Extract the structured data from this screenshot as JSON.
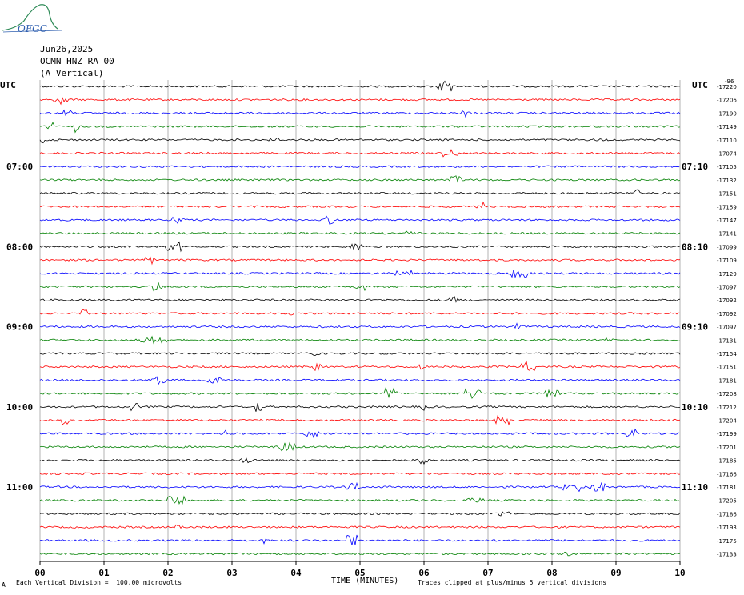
{
  "logo_text": "OFGC",
  "header": {
    "date": "Jun26,2025",
    "station": "OCMN HNZ RA 00",
    "component": "(A Vertical)"
  },
  "left_label": "UTC",
  "right_label": "UTC",
  "footer": {
    "scale": "Each Vertical Division =  100.00 microvolts",
    "xlabel": "TIME (MINUTES)",
    "clip_note": "Traces clipped at plus/minus 5 vertical divisions",
    "marker": "A"
  },
  "colors": {
    "cycle": [
      "#000000",
      "#ff0000",
      "#0000ff",
      "#008000"
    ]
  },
  "chart_data": {
    "type": "line",
    "title": "",
    "xlabel": "TIME (MINUTES)",
    "ylabel": "",
    "xlim": [
      0,
      10
    ],
    "x_ticks": [
      "00",
      "01",
      "02",
      "03",
      "04",
      "05",
      "06",
      "07",
      "08",
      "09",
      "10"
    ],
    "grid": true,
    "left_time_labels": [
      {
        "row": 6,
        "label": "07:00"
      },
      {
        "row": 12,
        "label": "08:00"
      },
      {
        "row": 18,
        "label": "09:00"
      },
      {
        "row": 24,
        "label": "10:00"
      },
      {
        "row": 30,
        "label": "11:00"
      }
    ],
    "right_time_labels": [
      {
        "row": 6,
        "label": "07:10"
      },
      {
        "row": 12,
        "label": "08:10"
      },
      {
        "row": 18,
        "label": "09:10"
      },
      {
        "row": 24,
        "label": "10:10"
      },
      {
        "row": 30,
        "label": "11:10"
      }
    ],
    "trace_offsets": [
      -17220,
      -17206,
      -17190,
      -17149,
      -17110,
      -17074,
      -17105,
      -17132,
      -17151,
      -17159,
      -17147,
      -17141,
      -17099,
      -17109,
      -17129,
      -17097,
      -17092,
      -17092,
      -17097,
      -17131,
      -17154,
      -17151,
      -17181,
      -17208,
      -17212,
      -17204,
      -17199,
      -17201,
      -17185,
      -17166,
      -17181,
      -17205,
      -17186,
      -17193,
      -17175,
      -17133
    ],
    "right_top_label": "-96"
  }
}
